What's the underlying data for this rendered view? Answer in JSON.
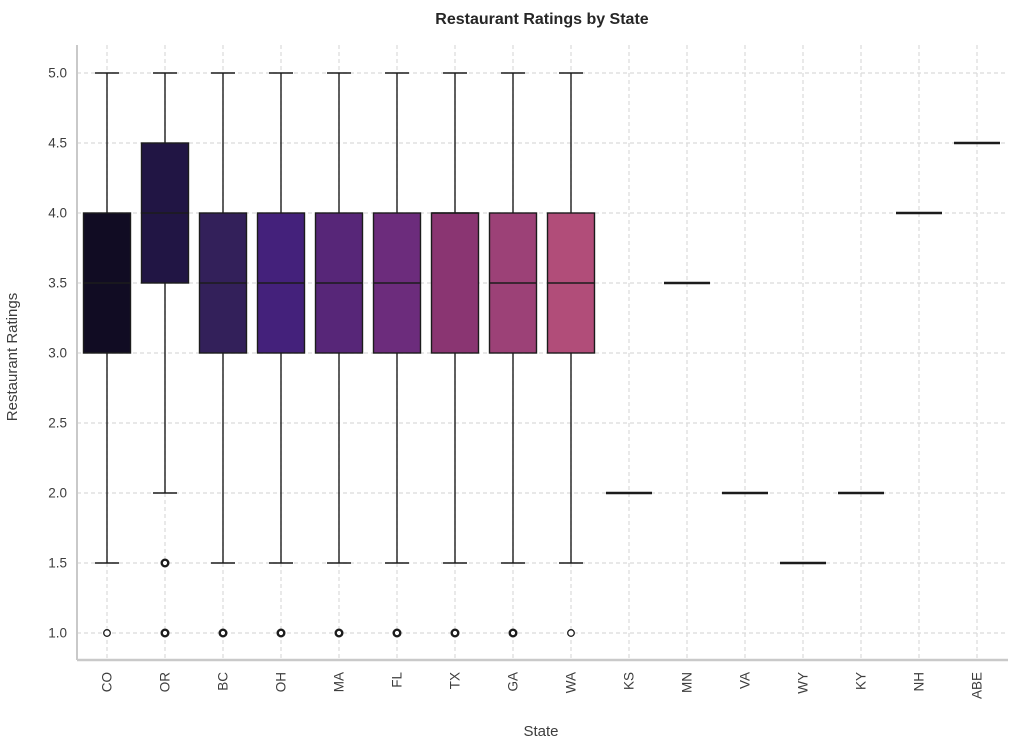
{
  "chart_data": {
    "type": "box",
    "title": "Restaurant Ratings by State",
    "xlabel": "State",
    "ylabel": "Restaurant Ratings",
    "ylim": [
      1.0,
      5.0
    ],
    "yticks": [
      5.0,
      4.5,
      4.0,
      3.5,
      3.0,
      2.5,
      2.0,
      1.5,
      1.0
    ],
    "ytick_labels": [
      "5.0",
      "4.5",
      "4.0",
      "3.5",
      "3.0",
      "2.5",
      "2.0",
      "1.5",
      "1.0"
    ],
    "categories": [
      "CO",
      "OR",
      "BC",
      "OH",
      "MA",
      "FL",
      "TX",
      "GA",
      "WA",
      "KS",
      "MN",
      "VA",
      "WY",
      "KY",
      "NH",
      "ABE"
    ],
    "grid": {
      "horizontal": true,
      "vertical": true,
      "style": "dashed"
    },
    "legend": null,
    "boxes": [
      {
        "state": "CO",
        "q1": 3.0,
        "median": 3.5,
        "q3": 4.0,
        "whisker_low": 1.5,
        "whisker_high": 5.0,
        "outliers": [
          1.0
        ],
        "outlier_style": "thin",
        "color": "#110c23"
      },
      {
        "state": "OR",
        "q1": 3.5,
        "median": 4.0,
        "q3": 4.5,
        "whisker_low": 2.0,
        "whisker_high": 5.0,
        "outliers": [
          1.5,
          1.0
        ],
        "outlier_style": "bold",
        "color": "#211544"
      },
      {
        "state": "BC",
        "q1": 3.0,
        "median": 3.5,
        "q3": 4.0,
        "whisker_low": 1.5,
        "whisker_high": 5.0,
        "outliers": [
          1.0
        ],
        "outlier_style": "bold",
        "color": "#33205a"
      },
      {
        "state": "OH",
        "q1": 3.0,
        "median": 3.5,
        "q3": 4.0,
        "whisker_low": 1.5,
        "whisker_high": 5.0,
        "outliers": [
          1.0
        ],
        "outlier_style": "bold",
        "color": "#44217b"
      },
      {
        "state": "MA",
        "q1": 3.0,
        "median": 3.5,
        "q3": 4.0,
        "whisker_low": 1.5,
        "whisker_high": 5.0,
        "outliers": [
          1.0
        ],
        "outlier_style": "bold",
        "color": "#572678"
      },
      {
        "state": "FL",
        "q1": 3.0,
        "median": 3.5,
        "q3": 4.0,
        "whisker_low": 1.5,
        "whisker_high": 5.0,
        "outliers": [
          1.0
        ],
        "outlier_style": "bold",
        "color": "#6c2c7c"
      },
      {
        "state": "TX",
        "q1": 3.0,
        "median": 4.0,
        "median_visible": false,
        "q3": 4.0,
        "whisker_low": 1.5,
        "whisker_high": 5.0,
        "outliers": [
          1.0
        ],
        "outlier_style": "bold",
        "color": "#8a3572"
      },
      {
        "state": "GA",
        "q1": 3.0,
        "median": 3.5,
        "q3": 4.0,
        "whisker_low": 1.5,
        "whisker_high": 5.0,
        "outliers": [
          1.0
        ],
        "outlier_style": "bold",
        "color": "#9c4177"
      },
      {
        "state": "WA",
        "q1": 3.0,
        "median": 3.5,
        "q3": 4.0,
        "whisker_low": 1.5,
        "whisker_high": 5.0,
        "outliers": [
          1.0
        ],
        "outlier_style": "thin",
        "color": "#b14d79"
      },
      {
        "state": "KS",
        "flat": true,
        "value": 2.0
      },
      {
        "state": "MN",
        "flat": true,
        "value": 3.5
      },
      {
        "state": "VA",
        "flat": true,
        "value": 2.0
      },
      {
        "state": "WY",
        "flat": true,
        "value": 1.5
      },
      {
        "state": "KY",
        "flat": true,
        "value": 2.0
      },
      {
        "state": "NH",
        "flat": true,
        "value": 4.0
      },
      {
        "state": "ABE",
        "flat": true,
        "value": 4.5
      }
    ]
  },
  "styles": {
    "box_edge_color": "#1c1c1c",
    "median_color": "#1c1c1c",
    "whisker_color": "#1c1c1c",
    "flat_line_color": "#1c1c1c",
    "outlier_edge_color": "#1c1c1c",
    "outlier_fill": "#ffffff",
    "grid_color": "#dadada",
    "spine_color": "#c9c9c9",
    "tick_label_color": "#3d3d3d",
    "axis_label_color": "#3d3d3d",
    "title_color": "#262626",
    "background": "#ffffff"
  }
}
